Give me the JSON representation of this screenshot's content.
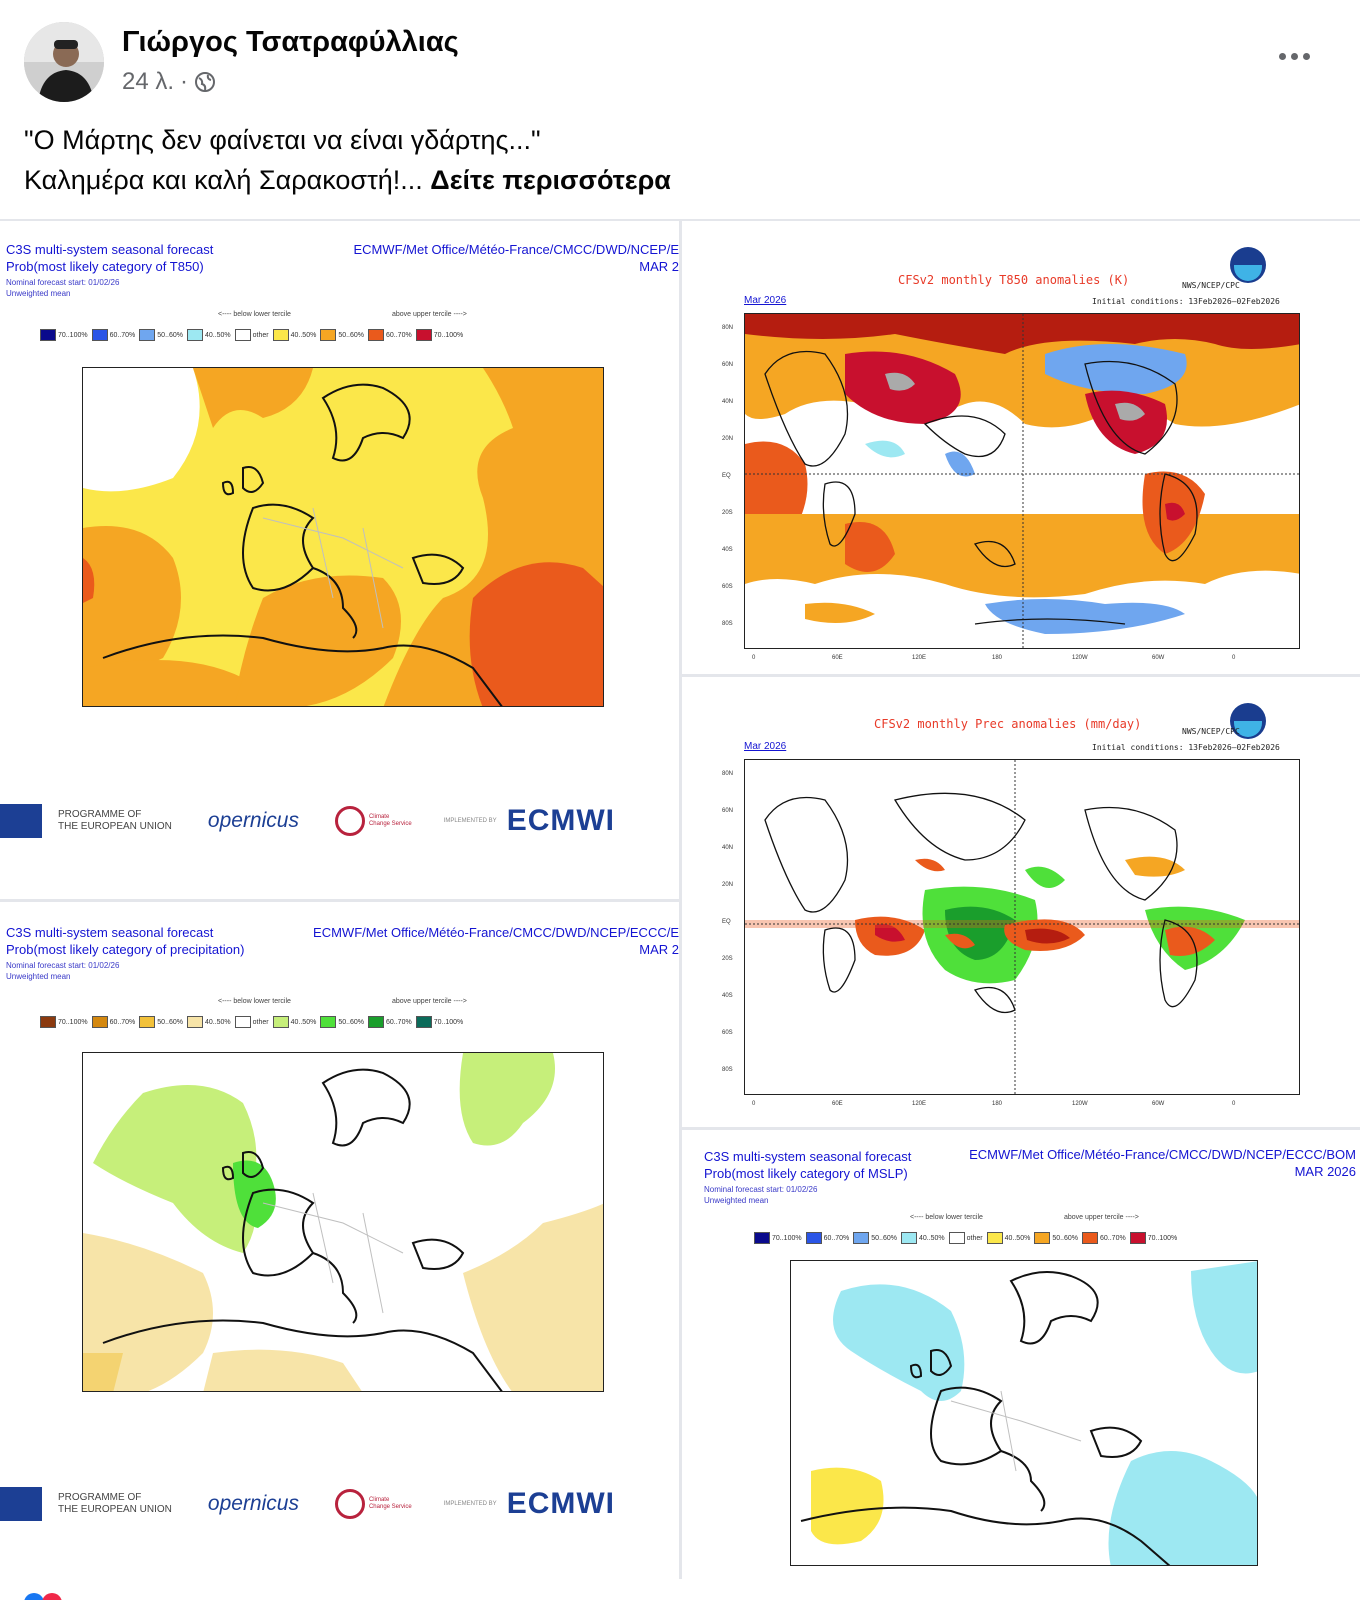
{
  "post": {
    "author": "Γιώργος Τσατραφύλλιας",
    "time": "24 λ.",
    "separator": "·",
    "line1": "\"Ο Μάρτης δεν φαίνεται να είναι γδάρτης...\"",
    "line2": "Καλημέρα και καλή Σαρακοστή!...",
    "see_more": "Δείτε περισσότερα"
  },
  "c3s_t850": {
    "title1": "C3S multi-system seasonal forecast",
    "title2": "Prob(most likely category of T850)",
    "sub1": "Nominal forecast start: 01/02/26",
    "sub2": "Unweighted mean",
    "centres": "ECMWF/Met Office/Météo-France/CMCC/DWD/NCEP/E",
    "month": "MAR 2",
    "below_cap": "<---- below lower tercile",
    "above_cap": "above upper tercile ---->",
    "legend": [
      "70..100%",
      "60..70%",
      "50..60%",
      "40..50%",
      "other",
      "40..50%",
      "50..60%",
      "60..70%",
      "70..100%"
    ],
    "legend_colors": [
      "#0a0a8c",
      "#2b55e6",
      "#6fa6ef",
      "#9de8f2",
      "#ffffff",
      "#fbe74a",
      "#f5a623",
      "#ea5a1c",
      "#c8102e"
    ]
  },
  "c3s_prec": {
    "title1": "C3S multi-system seasonal forecast",
    "title2": "Prob(most likely category of precipitation)",
    "sub1": "Nominal forecast start: 01/02/26",
    "sub2": "Unweighted mean",
    "centres": "ECMWF/Met Office/Météo-France/CMCC/DWD/NCEP/ECCC/E",
    "month": "MAR 2",
    "below_cap": "<---- below lower tercile",
    "above_cap": "above upper tercile ---->",
    "legend": [
      "70..100%",
      "60..70%",
      "50..60%",
      "40..50%",
      "other",
      "40..50%",
      "50..60%",
      "60..70%",
      "70..100%"
    ],
    "legend_colors": [
      "#8b3a0f",
      "#d4880f",
      "#f2c13a",
      "#f7e4a8",
      "#ffffff",
      "#c6ef7a",
      "#4fe03a",
      "#1a9e2c",
      "#0b6b5a"
    ]
  },
  "c3s_mslp": {
    "title1": "C3S multi-system seasonal forecast",
    "title2": "Prob(most likely category of MSLP)",
    "sub1": "Nominal forecast start: 01/02/26",
    "sub2": "Unweighted mean",
    "centres": "ECMWF/Met Office/Météo-France/CMCC/DWD/NCEP/ECCC/BOM",
    "month": "MAR 2026",
    "below_cap": "<---- below lower tercile",
    "above_cap": "above upper tercile ---->",
    "legend": [
      "70..100%",
      "60..70%",
      "50..60%",
      "40..50%",
      "other",
      "40..50%",
      "50..60%",
      "60..70%",
      "70..100%"
    ],
    "legend_colors": [
      "#0a0a8c",
      "#2b55e6",
      "#6fa6ef",
      "#9de8f2",
      "#ffffff",
      "#fbe74a",
      "#f5a623",
      "#ea5a1c",
      "#c8102e"
    ]
  },
  "cfs_t850": {
    "title": "CFSv2 monthly T850 anomalies (K)",
    "agency": "NWS/NCEP/CPC",
    "month": "Mar 2026",
    "ic": "Initial conditions: 13Feb2026–02Feb2026"
  },
  "cfs_prec": {
    "title": "CFSv2 monthly Prec anomalies (mm/day)",
    "agency": "NWS/NCEP/CPC",
    "month": "Mar 2026",
    "ic": "Initial conditions: 13Feb2026–02Feb2026"
  },
  "footer": {
    "programme": "PROGRAMME OF\nTHE EUROPEAN UNION",
    "copernicus": "opernicus",
    "c3s": "Climate\nChange Service",
    "implemented": "IMPLEMENTED BY",
    "ecmwf": "ECMWI"
  },
  "world_ticks_x": [
    "0",
    "60E",
    "120E",
    "180",
    "120W",
    "60W",
    "0"
  ],
  "world_ticks_y": [
    "80N",
    "60N",
    "40N",
    "20N",
    "EQ",
    "20S",
    "40S",
    "60S",
    "80S"
  ]
}
